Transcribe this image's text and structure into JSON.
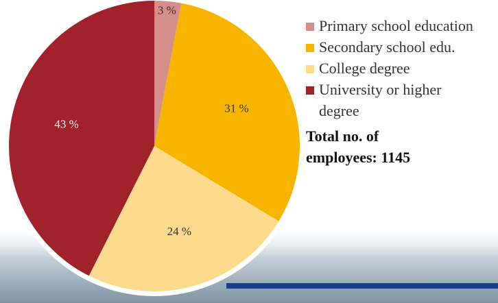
{
  "chart_data": {
    "type": "pie",
    "categories": [
      "Primary school education",
      "Secondary school edu.",
      "College degree",
      "University or higher degree"
    ],
    "values": [
      3,
      31,
      24,
      43
    ],
    "value_labels": [
      "3 %",
      "31 %",
      "24 %",
      "43 %"
    ],
    "colors": [
      "#d38f88",
      "#f8b500",
      "#fddb8d",
      "#a1222b"
    ],
    "annotation": "Total no. of employees: 1145"
  }
}
